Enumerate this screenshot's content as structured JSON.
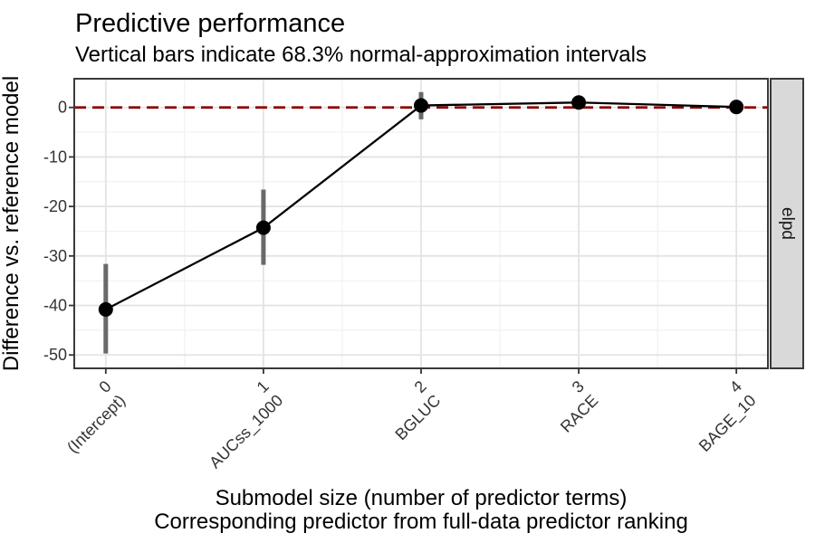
{
  "chart_data": {
    "type": "line",
    "title": "Predictive performance",
    "subtitle": "Vertical bars indicate 68.3% normal-approximation intervals",
    "xlabel": [
      "Submodel size (number of predictor terms)",
      "Corresponding predictor from full-data predictor ranking"
    ],
    "ylabel": "Difference vs. reference model",
    "facet_label": "elpd",
    "x": [
      0,
      1,
      2,
      3,
      4
    ],
    "x_tick_numbers": [
      "0",
      "1",
      "2",
      "3",
      "4"
    ],
    "x_tick_predictors": [
      "(Intercept)",
      "AUCss_1000",
      "BGLUC",
      "RACE",
      "BAGE_10"
    ],
    "series": [
      {
        "name": "elpd difference vs. reference model",
        "estimates": [
          -40.8,
          -24.3,
          0.4,
          1.0,
          0.1
        ],
        "lower": [
          -49.7,
          -31.8,
          -2.4,
          -0.3,
          -0.9
        ],
        "upper": [
          -31.6,
          -16.6,
          3.1,
          2.3,
          1.2
        ]
      }
    ],
    "reference_line_y": 0,
    "yticks": [
      0,
      -10,
      -20,
      -30,
      -40,
      -50
    ],
    "yticks_minor": [
      -5,
      -15,
      -25,
      -35,
      -45
    ],
    "xticks_minor": [
      0.5,
      1.5,
      2.5,
      3.5
    ],
    "ylim": [
      -52.7,
      5.8
    ],
    "xlim": [
      -0.2,
      4.2
    ],
    "grid": true,
    "legend": "none",
    "colors": {
      "point": "#000000",
      "line": "#000000",
      "interval": "#696969",
      "reference_line": "#8B0000",
      "grid_major": "#e3e3e3",
      "grid_minor": "#f1f1f1",
      "panel_border": "#3a3a3a",
      "tick_mark": "#333333",
      "strip_fill": "#d9d9d9",
      "axis_text": "#333333",
      "text": "#000000"
    }
  }
}
